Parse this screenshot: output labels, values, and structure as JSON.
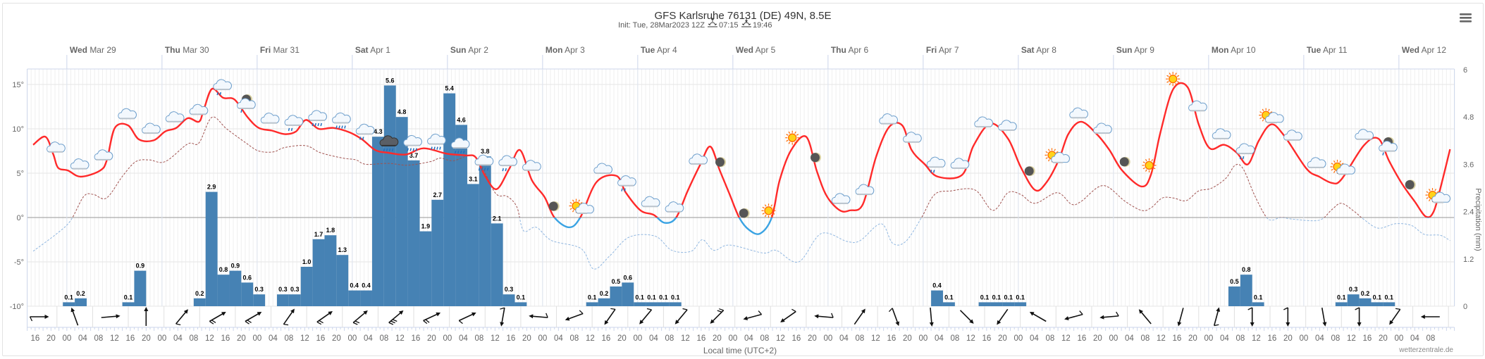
{
  "header": {
    "title": "GFS Karlsruhe 76131 (DE) 49N, 8.5E",
    "init": "Init: Tue, 28Mar2023 12Z",
    "sunrise": "07:15",
    "sunset": "19:46"
  },
  "menu_icon": "hamburger-menu-icon",
  "credit": "wetterzentrale.de",
  "days": [
    {
      "wd": "Wed",
      "date": "Mar 29"
    },
    {
      "wd": "Thu",
      "date": "Mar 30"
    },
    {
      "wd": "Fri",
      "date": "Mar 31"
    },
    {
      "wd": "Sat",
      "date": "Apr 1"
    },
    {
      "wd": "Sun",
      "date": "Apr 2"
    },
    {
      "wd": "Mon",
      "date": "Apr 3"
    },
    {
      "wd": "Tue",
      "date": "Apr 4"
    },
    {
      "wd": "Wed",
      "date": "Apr 5"
    },
    {
      "wd": "Thu",
      "date": "Apr 6"
    },
    {
      "wd": "Fri",
      "date": "Apr 7"
    },
    {
      "wd": "Sat",
      "date": "Apr 8"
    },
    {
      "wd": "Sun",
      "date": "Apr 9"
    },
    {
      "wd": "Mon",
      "date": "Apr 10"
    },
    {
      "wd": "Tue",
      "date": "Apr 11"
    },
    {
      "wd": "Wed",
      "date": "Apr 12"
    }
  ],
  "xaxis": {
    "title": "Local time (UTC+2)",
    "hour_labels": [
      "16",
      "20",
      "00",
      "04",
      "08",
      "12",
      "16",
      "20",
      "00",
      "04",
      "08",
      "12",
      "16",
      "20",
      "00",
      "04",
      "08",
      "12",
      "16",
      "20",
      "00",
      "04",
      "08",
      "12",
      "16",
      "20",
      "00",
      "04",
      "08",
      "12",
      "16",
      "20",
      "00",
      "04",
      "08",
      "12",
      "16",
      "20",
      "00",
      "04",
      "08",
      "12",
      "16",
      "20",
      "00",
      "04",
      "08",
      "12",
      "16",
      "20",
      "00",
      "04",
      "08",
      "12",
      "16",
      "20",
      "00",
      "04",
      "08",
      "12",
      "16",
      "20",
      "00",
      "04",
      "08",
      "12",
      "16",
      "20",
      "00",
      "04",
      "08",
      "12",
      "16",
      "20",
      "00",
      "04",
      "08",
      "12",
      "16",
      "20",
      "00",
      "04",
      "08",
      "12",
      "16",
      "20",
      "00",
      "04",
      "08"
    ]
  },
  "chart_data": {
    "type": "line+bar",
    "title": "GFS Karlsruhe 76131 (DE) 49N, 8.5E",
    "x_start": "Tue Mar 28 14:00 local",
    "x_hours": 360,
    "y_left": {
      "label": "Temperature (°C)",
      "ticks": [
        "15°",
        "10°",
        "5°",
        "0°",
        "-5°",
        "-10°"
      ],
      "values": [
        15,
        10,
        5,
        0,
        -5,
        -10
      ],
      "range": [
        -10,
        15
      ]
    },
    "y_right": {
      "label": "Precipitation (mm)",
      "ticks": [
        "6",
        "4.8",
        "3.6",
        "2.4",
        "1.2",
        "0"
      ],
      "values": [
        6,
        4.8,
        3.6,
        2.4,
        1.2,
        0
      ],
      "range": [
        0,
        6
      ]
    },
    "grid": true,
    "colors": {
      "temp": "#ff2a2a",
      "temp_below_zero": "#3aa3e3",
      "dew": "#a0524f",
      "dew_below_zero": "#8fb6e0",
      "precip": "#4682b4"
    },
    "temperature": [
      [
        1.5,
        8.2
      ],
      [
        4.6,
        9.1
      ],
      [
        6.6,
        7.1
      ],
      [
        7.8,
        5.6
      ],
      [
        10.3,
        5.3
      ],
      [
        13.5,
        4.6
      ],
      [
        18.4,
        5.3
      ],
      [
        20.1,
        6.5
      ],
      [
        22.1,
        10.1
      ],
      [
        25.4,
        10.4
      ],
      [
        28.2,
        8.8
      ],
      [
        31.9,
        8.7
      ],
      [
        34.8,
        9.7
      ],
      [
        37.6,
        10.1
      ],
      [
        40.5,
        11.2
      ],
      [
        43.3,
        10.8
      ],
      [
        44.5,
        12.1
      ],
      [
        46.6,
        14.5
      ],
      [
        49.4,
        13.5
      ],
      [
        52.3,
        13.3
      ],
      [
        55.6,
        11.3
      ],
      [
        58.4,
        10.1
      ],
      [
        61.7,
        9.8
      ],
      [
        65,
        9.4
      ],
      [
        67.8,
        9.7
      ],
      [
        70.3,
        11.0
      ],
      [
        73.5,
        10.0
      ],
      [
        77.2,
        10.1
      ],
      [
        81.3,
        9.6
      ],
      [
        84.5,
        8.8
      ],
      [
        87.8,
        7.6
      ],
      [
        91.1,
        7.3
      ],
      [
        95.5,
        7.1
      ],
      [
        100,
        7.8
      ],
      [
        105.8,
        7.2
      ],
      [
        110.6,
        7.0
      ],
      [
        113.1,
        6.8
      ],
      [
        115.5,
        4.7
      ],
      [
        118.4,
        3.2
      ],
      [
        121.6,
        5.5
      ],
      [
        124.3,
        7.6
      ],
      [
        127.3,
        4.2
      ],
      [
        130.5,
        2.3
      ],
      [
        133,
        0
      ],
      [
        136.7,
        -1.1
      ],
      [
        139.5,
        0
      ],
      [
        143.6,
        4.0
      ],
      [
        148.6,
        4.7
      ],
      [
        151,
        2.8
      ],
      [
        154.7,
        0.8
      ],
      [
        158,
        0.3
      ],
      [
        160.8,
        -0.6
      ],
      [
        163.7,
        0
      ],
      [
        166.6,
        3.0
      ],
      [
        169.8,
        6.0
      ],
      [
        172.3,
        8.0
      ],
      [
        174.7,
        5.3
      ],
      [
        177.2,
        2.6
      ],
      [
        179.6,
        0
      ],
      [
        182.1,
        -1.4
      ],
      [
        184.9,
        -1.8
      ],
      [
        187.8,
        0
      ],
      [
        189.8,
        4.2
      ],
      [
        192.7,
        7.6
      ],
      [
        196.5,
        9.1
      ],
      [
        199.2,
        5.2
      ],
      [
        201.7,
        2.4
      ],
      [
        205,
        0.8
      ],
      [
        207.5,
        0.8
      ],
      [
        210.8,
        1.5
      ],
      [
        214.1,
        6.8
      ],
      [
        217.4,
        10.2
      ],
      [
        220.7,
        10.4
      ],
      [
        223.1,
        7.6
      ],
      [
        226.4,
        6.0
      ],
      [
        229.7,
        4.6
      ],
      [
        235.8,
        4.8
      ],
      [
        238.7,
        8.1
      ],
      [
        243,
        10.6
      ],
      [
        247.4,
        8.9
      ],
      [
        250.6,
        5.7
      ],
      [
        254.2,
        3.1
      ],
      [
        257,
        3.9
      ],
      [
        260.2,
        6.5
      ],
      [
        262.6,
        9.4
      ],
      [
        265.8,
        10.8
      ],
      [
        269.8,
        9.4
      ],
      [
        273,
        7.6
      ],
      [
        276.2,
        5.3
      ],
      [
        281.1,
        3.5
      ],
      [
        283.5,
        4.9
      ],
      [
        285.9,
        9.7
      ],
      [
        289.1,
        14.5
      ],
      [
        292.7,
        14.7
      ],
      [
        295.5,
        10.5
      ],
      [
        298.3,
        7.8
      ],
      [
        301.9,
        8.2
      ],
      [
        305.1,
        7.3
      ],
      [
        307.9,
        6.0
      ],
      [
        310.7,
        8.7
      ],
      [
        313.8,
        10.5
      ],
      [
        317.1,
        9.2
      ],
      [
        322.7,
        5.5
      ],
      [
        325.9,
        4.6
      ],
      [
        329.1,
        3.9
      ],
      [
        331.5,
        4.3
      ],
      [
        337.1,
        8.1
      ],
      [
        340.8,
        8.9
      ],
      [
        343.6,
        6.3
      ],
      [
        346.8,
        3.8
      ],
      [
        350,
        1.8
      ],
      [
        352.8,
        0.1
      ],
      [
        354.8,
        0.7
      ],
      [
        356.8,
        3.9
      ],
      [
        358.9,
        7.7
      ]
    ],
    "dewpoint": [
      [
        1.5,
        -3.8
      ],
      [
        7.8,
        -1.7
      ],
      [
        11,
        -0.3
      ],
      [
        14.3,
        2.4
      ],
      [
        16.7,
        2.6
      ],
      [
        20,
        2.2
      ],
      [
        24.1,
        4.7
      ],
      [
        27.4,
        6.3
      ],
      [
        30.7,
        6.5
      ],
      [
        34.8,
        6.3
      ],
      [
        40.5,
        8.3
      ],
      [
        43.3,
        8.4
      ],
      [
        46.6,
        11.3
      ],
      [
        50.3,
        10
      ],
      [
        55.2,
        8.4
      ],
      [
        58.4,
        7.5
      ],
      [
        62.1,
        7.4
      ],
      [
        65,
        7.9
      ],
      [
        70.3,
        8.1
      ],
      [
        74,
        7.3
      ],
      [
        79.6,
        6.7
      ],
      [
        82.9,
        6.5
      ],
      [
        85.4,
        6.0
      ],
      [
        91.1,
        6.1
      ],
      [
        96,
        5.9
      ],
      [
        101.7,
        6.3
      ],
      [
        104.2,
        6.7
      ],
      [
        107.4,
        6.4
      ],
      [
        113.1,
        6.8
      ],
      [
        118,
        2.8
      ],
      [
        121,
        2.4
      ],
      [
        123.5,
        1.2
      ],
      [
        125.2,
        -1.5
      ],
      [
        128.4,
        -1.1
      ],
      [
        132.3,
        -2.6
      ],
      [
        139.7,
        -3.5
      ],
      [
        142.9,
        -5.8
      ],
      [
        147,
        -4.3
      ],
      [
        151.9,
        -2.2
      ],
      [
        158.4,
        -2.1
      ],
      [
        162.6,
        -3.7
      ],
      [
        167.5,
        -3.8
      ],
      [
        170.3,
        -2.5
      ],
      [
        173.2,
        -3.7
      ],
      [
        177.2,
        -3.1
      ],
      [
        185.6,
        -4.0
      ],
      [
        188.9,
        -3.7
      ],
      [
        194.6,
        -5.0
      ],
      [
        200.3,
        -1.8
      ],
      [
        206.8,
        -2.7
      ],
      [
        210.1,
        -2.6
      ],
      [
        215.4,
        -0.7
      ],
      [
        218.3,
        -2.9
      ],
      [
        221.6,
        -2.7
      ],
      [
        225.6,
        0
      ],
      [
        228.9,
        2.6
      ],
      [
        233,
        3.0
      ],
      [
        239.1,
        3.1
      ],
      [
        243.6,
        0.8
      ],
      [
        247.4,
        2.8
      ],
      [
        250.6,
        2.6
      ],
      [
        254.2,
        1.6
      ],
      [
        259.8,
        2.8
      ],
      [
        263.4,
        1.5
      ],
      [
        265.8,
        1.8
      ],
      [
        271.4,
        3.6
      ],
      [
        277,
        1.8
      ],
      [
        281.1,
        0.8
      ],
      [
        283.5,
        1.1
      ],
      [
        286.3,
        2.2
      ],
      [
        289.1,
        2.2
      ],
      [
        292.3,
        1.9
      ],
      [
        295.5,
        3.0
      ],
      [
        298.7,
        3.3
      ],
      [
        302.3,
        4.4
      ],
      [
        304.7,
        5.9
      ],
      [
        306.7,
        5.5
      ],
      [
        309.5,
        2.6
      ],
      [
        312.3,
        0.2
      ],
      [
        313.9,
        -0.3
      ],
      [
        316.3,
        0
      ],
      [
        319.5,
        -0.2
      ],
      [
        325.9,
        -0.3
      ],
      [
        329.1,
        0.9
      ],
      [
        331.5,
        1.6
      ],
      [
        334.7,
        0.7
      ],
      [
        337.1,
        -0.2
      ],
      [
        340.8,
        -1.2
      ],
      [
        345.2,
        -0.7
      ],
      [
        349.2,
        -0.9
      ],
      [
        352.4,
        -1.9
      ],
      [
        356.4,
        -2.0
      ],
      [
        358.9,
        -2.6
      ]
    ],
    "precip_3h": [
      [
        9,
        0.1
      ],
      [
        12,
        0.2
      ],
      [
        24,
        0.1
      ],
      [
        27,
        0.9
      ],
      [
        42,
        0.2
      ],
      [
        45,
        2.9
      ],
      [
        48,
        0.8
      ],
      [
        51,
        0.9
      ],
      [
        54,
        0.6
      ],
      [
        57,
        0.3
      ],
      [
        63,
        0.3
      ],
      [
        66,
        0.3
      ],
      [
        69,
        1.0
      ],
      [
        72,
        1.7
      ],
      [
        75,
        1.8
      ],
      [
        78,
        1.3
      ],
      [
        81,
        0.4
      ],
      [
        84,
        0.4
      ],
      [
        87,
        4.3
      ],
      [
        90,
        5.6
      ],
      [
        93,
        4.8
      ],
      [
        96,
        3.7
      ],
      [
        99,
        1.9
      ],
      [
        102,
        2.7
      ],
      [
        105,
        5.4
      ],
      [
        108,
        4.6
      ],
      [
        111,
        3.1
      ],
      [
        114,
        3.8
      ],
      [
        117,
        2.1
      ],
      [
        120,
        0.3
      ],
      [
        123,
        0.1
      ],
      [
        141,
        0.1
      ],
      [
        144,
        0.2
      ],
      [
        147,
        0.5
      ],
      [
        150,
        0.6
      ],
      [
        153,
        0.1
      ],
      [
        156,
        0.1
      ],
      [
        159,
        0.1
      ],
      [
        162,
        0.1
      ],
      [
        228,
        0.4
      ],
      [
        231,
        0.1
      ],
      [
        240,
        0.1
      ],
      [
        243,
        0.1
      ],
      [
        246,
        0.1
      ],
      [
        249,
        0.1
      ],
      [
        303,
        0.5
      ],
      [
        306,
        0.8
      ],
      [
        309,
        0.1
      ],
      [
        330,
        0.1
      ],
      [
        333,
        0.3
      ],
      [
        336,
        0.2
      ],
      [
        339,
        0.1
      ],
      [
        342,
        0.1
      ]
    ],
    "weather_icons": [
      "cloud",
      "cloud",
      "cloud",
      "cloud",
      "cloud",
      "cloud",
      "cloud",
      "rain",
      "moon-cloud",
      "cloud",
      "rain",
      "heavy-rain",
      "heavy-rain",
      "rain",
      "storm",
      "heavy-rain",
      "heavy-rain",
      "heavy-rain",
      "heavy-rain",
      "rain",
      "cloud",
      "moon",
      "sun-cloud",
      "cloud",
      "rain",
      "cloud",
      "cloud",
      "cloud",
      "moon",
      "moon",
      "sun",
      "sun",
      "moon",
      "cloud",
      "cloud",
      "cloud",
      "cloud",
      "rain",
      "cloud",
      "cloud",
      "cloud",
      "moon",
      "sun-cloud",
      "cloud",
      "cloud",
      "moon",
      "sun",
      "sun",
      "cloud",
      "cloud",
      "rain",
      "sun-cloud",
      "cloud",
      "cloud",
      "sun-cloud",
      "cloud",
      "moon-cloud",
      "moon",
      "sun-cloud"
    ],
    "weather_icons_first_hour": 7,
    "weather_icons_step_hours": 6,
    "wind": [
      {
        "to": 90,
        "b": 1
      },
      {
        "to": 340,
        "b": 0
      },
      {
        "to": 85,
        "b": 0
      },
      {
        "to": 0,
        "b": 0
      },
      {
        "to": 40,
        "b": 1
      },
      {
        "to": 60,
        "b": 2
      },
      {
        "to": 60,
        "b": 2
      },
      {
        "to": 35,
        "b": 1
      },
      {
        "to": 55,
        "b": 2
      },
      {
        "to": 50,
        "b": 2
      },
      {
        "to": 50,
        "b": 3
      },
      {
        "to": 65,
        "b": 2
      },
      {
        "to": 65,
        "b": 1
      },
      {
        "to": 190,
        "b": 1
      },
      {
        "to": 275,
        "b": 1
      },
      {
        "to": 250,
        "b": 1
      },
      {
        "to": 215,
        "b": 1
      },
      {
        "to": 220,
        "b": 1
      },
      {
        "to": 220,
        "b": 1
      },
      {
        "to": 225,
        "b": 2
      },
      {
        "to": 255,
        "b": 1
      },
      {
        "to": 235,
        "b": 1
      },
      {
        "to": 275,
        "b": 1
      },
      {
        "to": 35,
        "b": 0
      },
      {
        "to": 160,
        "b": 1
      },
      {
        "to": 175,
        "b": 0
      },
      {
        "to": 135,
        "b": 0
      },
      {
        "to": 215,
        "b": 0
      },
      {
        "to": 300,
        "b": 0
      },
      {
        "to": 255,
        "b": 1
      },
      {
        "to": 265,
        "b": 1
      },
      {
        "to": 320,
        "b": 0
      },
      {
        "to": 195,
        "b": 0
      },
      {
        "to": 15,
        "b": 1
      },
      {
        "to": 180,
        "b": 1
      },
      {
        "to": 180,
        "b": 1
      },
      {
        "to": 170,
        "b": 0
      },
      {
        "to": 180,
        "b": 1
      },
      {
        "to": 215,
        "b": 1
      },
      {
        "to": 270,
        "b": 0
      }
    ],
    "wind_first_hour": 3,
    "wind_step_hours": 9
  }
}
